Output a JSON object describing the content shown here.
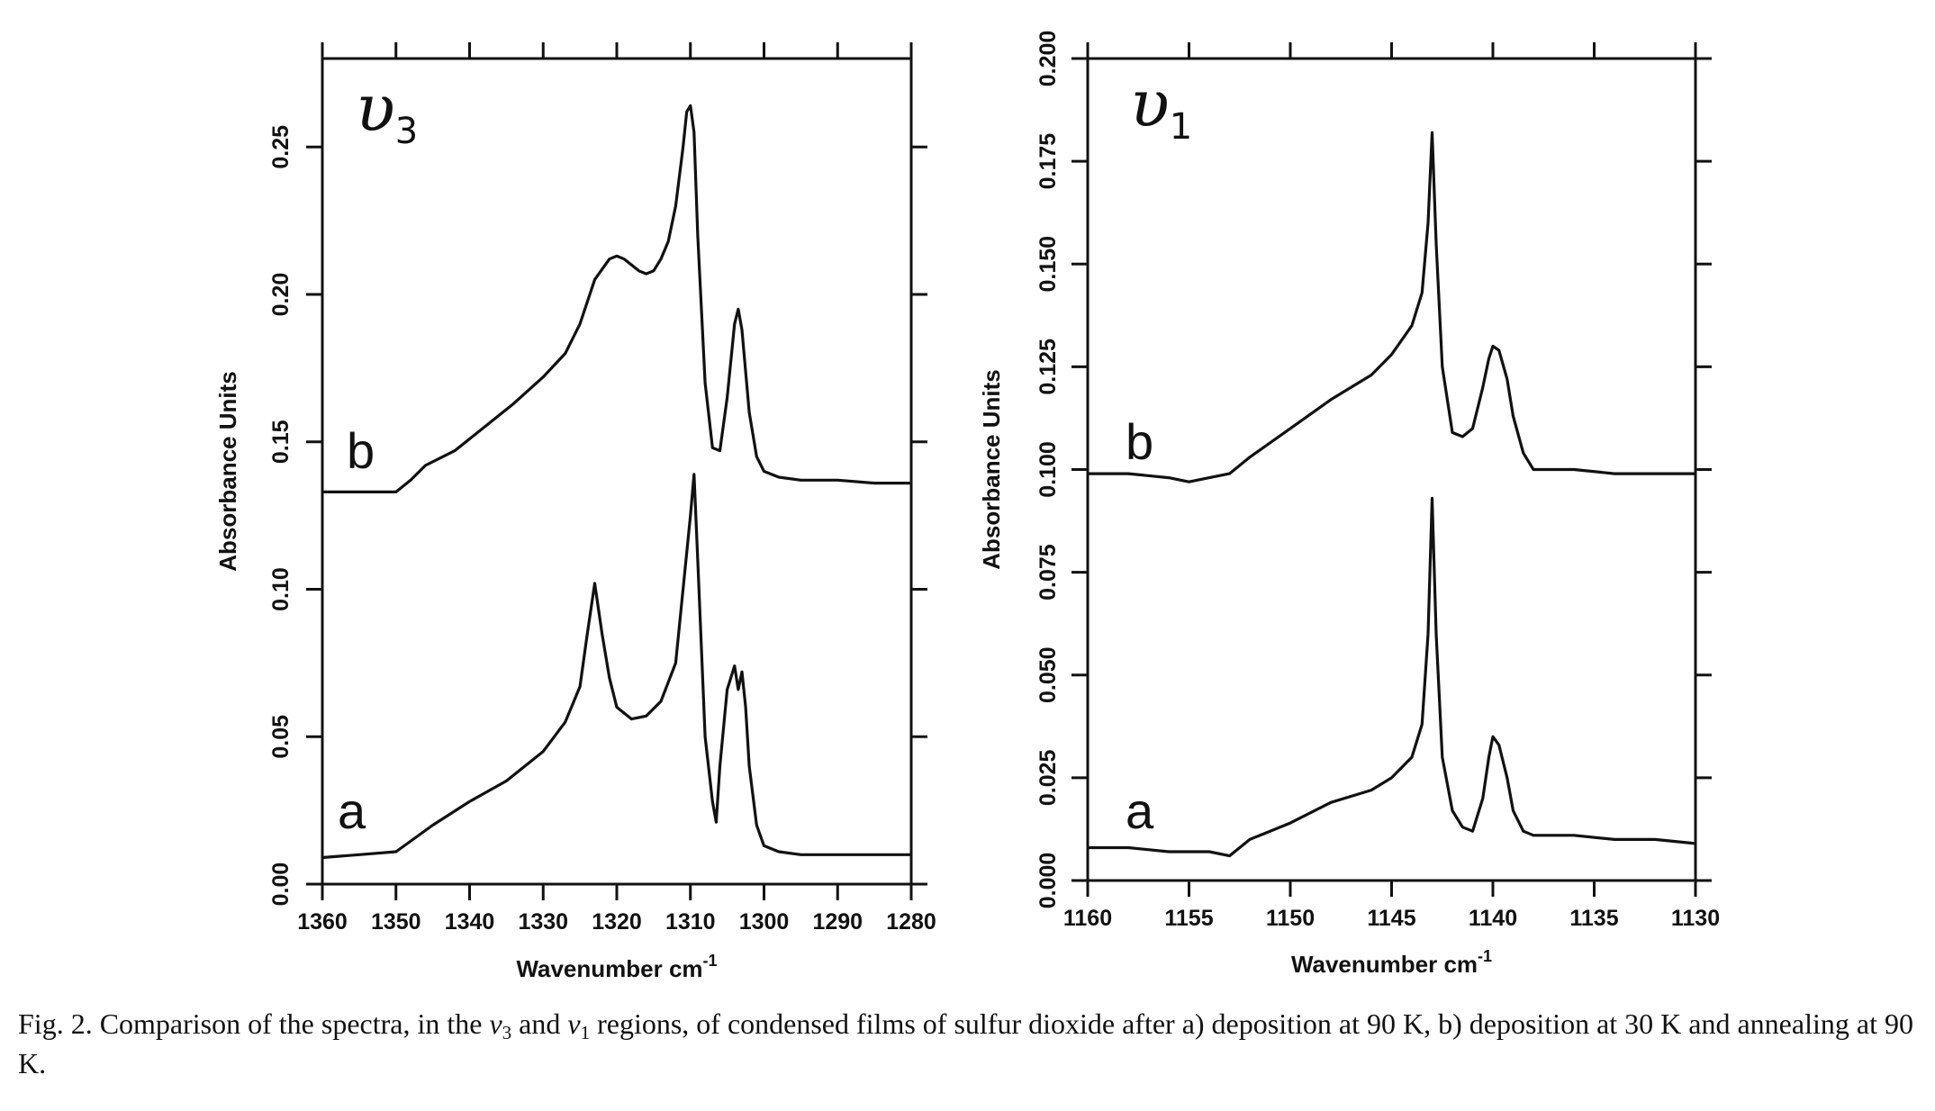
{
  "chart_data": [
    {
      "type": "line",
      "panel_label": "υ",
      "panel_label_sub": "3",
      "xlabel": "Wavenumber cm",
      "xlabel_sup": "-1",
      "ylabel": "Absorbance Units",
      "xlim": [
        1360,
        1280
      ],
      "ylim": [
        0.0,
        0.28
      ],
      "xticks": [
        1360,
        1350,
        1340,
        1330,
        1320,
        1310,
        1300,
        1290,
        1280
      ],
      "xtick_labels": [
        "1360",
        "1350",
        "1340",
        "1330",
        "1320",
        "1310",
        "1300",
        "1290",
        "1280"
      ],
      "yticks": [
        0.0,
        0.05,
        0.1,
        0.15,
        0.2,
        0.25
      ],
      "ytick_labels": [
        "0.00",
        "0.05",
        "0.10",
        "0.15",
        "0.20",
        "0.25"
      ],
      "series": [
        {
          "name": "a",
          "x": [
            1360,
            1355,
            1350,
            1345,
            1340,
            1335,
            1330,
            1327,
            1325,
            1324,
            1323,
            1322,
            1321,
            1320,
            1318,
            1316,
            1314,
            1312,
            1311,
            1310,
            1309.5,
            1309,
            1308,
            1307,
            1306.5,
            1306,
            1305,
            1304,
            1303.5,
            1303,
            1302.5,
            1302,
            1301,
            1300,
            1298,
            1295,
            1290,
            1285,
            1280
          ],
          "y": [
            0.009,
            0.01,
            0.011,
            0.02,
            0.028,
            0.035,
            0.045,
            0.055,
            0.067,
            0.085,
            0.102,
            0.085,
            0.07,
            0.06,
            0.056,
            0.057,
            0.062,
            0.075,
            0.1,
            0.125,
            0.139,
            0.11,
            0.05,
            0.028,
            0.021,
            0.04,
            0.066,
            0.074,
            0.066,
            0.072,
            0.06,
            0.04,
            0.02,
            0.013,
            0.011,
            0.01,
            0.01,
            0.01,
            0.01
          ]
        },
        {
          "name": "b",
          "x": [
            1360,
            1355,
            1350,
            1348,
            1346,
            1342,
            1338,
            1334,
            1330,
            1327,
            1325,
            1323,
            1321,
            1320,
            1319,
            1318,
            1317,
            1316,
            1315,
            1314,
            1313,
            1312,
            1311,
            1310.5,
            1310,
            1309.5,
            1309,
            1308,
            1307,
            1306,
            1305,
            1304,
            1303.5,
            1303,
            1302,
            1301,
            1300,
            1298,
            1295,
            1290,
            1285,
            1280
          ],
          "y": [
            0.133,
            0.133,
            0.133,
            0.137,
            0.142,
            0.147,
            0.155,
            0.163,
            0.172,
            0.18,
            0.19,
            0.205,
            0.212,
            0.213,
            0.212,
            0.21,
            0.208,
            0.207,
            0.208,
            0.212,
            0.218,
            0.23,
            0.25,
            0.262,
            0.264,
            0.255,
            0.22,
            0.17,
            0.148,
            0.147,
            0.165,
            0.19,
            0.195,
            0.188,
            0.16,
            0.145,
            0.14,
            0.138,
            0.137,
            0.137,
            0.136,
            0.136
          ]
        }
      ]
    },
    {
      "type": "line",
      "panel_label": "υ",
      "panel_label_sub": "1",
      "xlabel": "Wavenumber cm",
      "xlabel_sup": "-1",
      "ylabel": "Absorbance Units",
      "xlim": [
        1160,
        1130
      ],
      "ylim": [
        0.0,
        0.2
      ],
      "xticks": [
        1160,
        1155,
        1150,
        1145,
        1140,
        1135,
        1130
      ],
      "xtick_labels": [
        "1160",
        "1155",
        "1150",
        "1145",
        "1140",
        "1135",
        "1130"
      ],
      "yticks": [
        0.0,
        0.025,
        0.05,
        0.075,
        0.1,
        0.125,
        0.15,
        0.175,
        0.2
      ],
      "ytick_labels": [
        "0.000",
        "0.025",
        "0.050",
        "0.075",
        "0.100",
        "0.125",
        "0.150",
        "0.175",
        "0.200"
      ],
      "series": [
        {
          "name": "a",
          "x": [
            1160,
            1158,
            1156,
            1154,
            1153,
            1152,
            1150,
            1148,
            1146,
            1145,
            1144,
            1143.5,
            1143.2,
            1143,
            1142.8,
            1142.5,
            1142,
            1141.5,
            1141,
            1140.5,
            1140.2,
            1140,
            1139.7,
            1139.3,
            1139,
            1138.5,
            1138,
            1136,
            1134,
            1132,
            1130
          ],
          "y": [
            0.008,
            0.008,
            0.007,
            0.007,
            0.006,
            0.01,
            0.014,
            0.019,
            0.022,
            0.025,
            0.03,
            0.038,
            0.06,
            0.093,
            0.06,
            0.03,
            0.017,
            0.013,
            0.012,
            0.02,
            0.03,
            0.035,
            0.033,
            0.025,
            0.017,
            0.012,
            0.011,
            0.011,
            0.01,
            0.01,
            0.009
          ]
        },
        {
          "name": "b",
          "x": [
            1160,
            1158,
            1156,
            1155,
            1154,
            1153,
            1152,
            1150,
            1148,
            1146,
            1145,
            1144,
            1143.5,
            1143.2,
            1143,
            1142.8,
            1142.5,
            1142,
            1141.5,
            1141,
            1140.5,
            1140.2,
            1140,
            1139.7,
            1139.3,
            1139,
            1138.5,
            1138,
            1136,
            1134,
            1132,
            1130
          ],
          "y": [
            0.099,
            0.099,
            0.098,
            0.097,
            0.098,
            0.099,
            0.103,
            0.11,
            0.117,
            0.123,
            0.128,
            0.135,
            0.143,
            0.16,
            0.182,
            0.155,
            0.125,
            0.109,
            0.108,
            0.11,
            0.12,
            0.127,
            0.13,
            0.129,
            0.122,
            0.113,
            0.104,
            0.1,
            0.1,
            0.099,
            0.099,
            0.099
          ]
        }
      ]
    }
  ],
  "caption": {
    "prefix": "Fig. 2. Comparison of the spectra, in the ",
    "nu": "ν",
    "sub1": "3",
    "and": " and ",
    "sub2": "1",
    "suffix": " regions, of condensed films of sulfur dioxide after a) deposition at 90 K, b) deposition at 30 K and annealing at 90 K."
  }
}
